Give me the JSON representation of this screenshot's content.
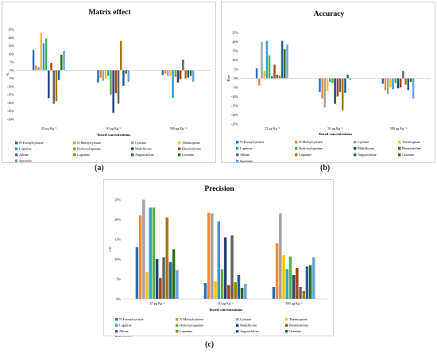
{
  "series_legend": [
    {
      "name": "N-Formylcytisine",
      "color": "#2e72b8"
    },
    {
      "name": "N-Methylcytisine",
      "color": "#ef8c3b"
    },
    {
      "name": "Cytisine",
      "color": "#a4a4a4"
    },
    {
      "name": "Thermopsine",
      "color": "#f6c11d"
    },
    {
      "name": "Lupinine",
      "color": "#2fa0d6"
    },
    {
      "name": "Hydroxylupanine",
      "color": "#56b347"
    },
    {
      "name": "Multiflorine",
      "color": "#264478"
    },
    {
      "name": "Rhombifoline",
      "color": "#a3460f"
    },
    {
      "name": "Albine",
      "color": "#636363"
    },
    {
      "name": "Lupanine",
      "color": "#a67c00"
    },
    {
      "name": "Angustifoline",
      "color": "#245e9f"
    },
    {
      "name": "Gramine",
      "color": "#2d6e24"
    },
    {
      "name": "Sparteine",
      "color": "#6fa3d8"
    }
  ],
  "chart_data": [
    {
      "type": "bar",
      "panel_label": "(a)",
      "title": "Matrix effect",
      "xlabel": "Tested concentrations",
      "ylabel": "%",
      "categories": [
        "25 μg Kg⁻¹",
        "50 μg Kg⁻¹",
        "500 μg Kg⁻¹"
      ],
      "ylim": [
        -30,
        25
      ],
      "yticks": [
        25,
        20,
        15,
        10,
        5,
        0,
        -5,
        -10,
        -15,
        -20,
        -25,
        -30
      ],
      "ytick_labels": [
        "25%",
        "20%",
        "15%",
        "10%",
        "5%",
        "0%",
        "-5%",
        "-10%",
        "-15%",
        "-20%",
        "-25%",
        "-30%"
      ],
      "grid": false,
      "legend": "bottom",
      "series": [
        {
          "name": "N-Formylcytisine",
          "values": [
            12.5,
            -7.5,
            -3
          ]
        },
        {
          "name": "N-Methylcytisine",
          "values": [
            3,
            -4.5,
            -2
          ]
        },
        {
          "name": "Cytisine",
          "values": [
            2,
            -6.5,
            -3.5
          ]
        },
        {
          "name": "Thermopsine",
          "values": [
            23,
            -5,
            -3.5
          ]
        },
        {
          "name": "Lupinine",
          "values": [
            16.5,
            -3.5,
            -17
          ]
        },
        {
          "name": "Hydroxylupanine",
          "values": [
            19.5,
            -15,
            -4
          ]
        },
        {
          "name": "Multiflorine",
          "values": [
            -17,
            -26,
            -7.5
          ]
        },
        {
          "name": "Rhombifoline",
          "values": [
            4.5,
            -14,
            -5.5
          ]
        },
        {
          "name": "Albine",
          "values": [
            -20.5,
            -20.5,
            6.5
          ]
        },
        {
          "name": "Lupanine",
          "values": [
            -19,
            18,
            -5
          ]
        },
        {
          "name": "Angustifoline",
          "values": [
            -6,
            -9.5,
            -4.5
          ]
        },
        {
          "name": "Gramine",
          "values": [
            9.5,
            -2,
            -3.5
          ]
        },
        {
          "name": "Sparteine",
          "values": [
            12,
            -7,
            -7
          ]
        }
      ]
    },
    {
      "type": "bar",
      "panel_label": "(b)",
      "title": "Accuracy",
      "xlabel": "Tested concentrations",
      "ylabel": "Bias",
      "categories": [
        "25 μg Kg⁻¹",
        "50 μg Kg⁻¹",
        "500 μg Kg⁻¹"
      ],
      "ylim": [
        -25,
        25
      ],
      "yticks": [
        25,
        20,
        15,
        10,
        5,
        0,
        -5,
        -10,
        -15,
        -20,
        -25
      ],
      "ytick_labels": [
        "25%",
        "20%",
        "15%",
        "10%",
        "5%",
        "0%",
        "-5%",
        "-10%",
        "-15%",
        "-20%",
        "-25%"
      ],
      "grid": false,
      "legend": "bottom",
      "series": [
        {
          "name": "N-Formylcytisine",
          "values": [
            5.5,
            -7.5,
            -3
          ]
        },
        {
          "name": "N-Methylcytisine",
          "values": [
            -4,
            -11,
            -6.5
          ]
        },
        {
          "name": "Cytisine",
          "values": [
            20,
            -16,
            -8.5
          ]
        },
        {
          "name": "Thermopsine",
          "values": [
            4,
            -7,
            -5
          ]
        },
        {
          "name": "Lupinine",
          "values": [
            20.5,
            -2,
            -6
          ]
        },
        {
          "name": "Hydroxylupanine",
          "values": [
            12.5,
            -2.5,
            -2.5
          ]
        },
        {
          "name": "Multiflorine",
          "values": [
            1,
            -14,
            -5.5
          ]
        },
        {
          "name": "Rhombifoline",
          "values": [
            7.5,
            -10,
            -5
          ]
        },
        {
          "name": "Albine",
          "values": [
            2,
            -7.5,
            4
          ]
        },
        {
          "name": "Lupanine",
          "values": [
            1.5,
            -17.5,
            -3.5
          ]
        },
        {
          "name": "Angustifoline",
          "values": [
            20.5,
            -8,
            -6.5
          ]
        },
        {
          "name": "Gramine",
          "values": [
            16,
            2,
            -2
          ]
        },
        {
          "name": "Sparteine",
          "values": [
            18.5,
            -1,
            -11
          ]
        }
      ]
    },
    {
      "type": "bar",
      "panel_label": "(c)",
      "title": "Precision",
      "xlabel": "Tested concentrations",
      "ylabel": "CV",
      "categories": [
        "25 μg Kg⁻¹",
        "50 μg Kg⁻¹",
        "500 μg Kg⁻¹"
      ],
      "ylim": [
        0,
        25
      ],
      "yticks": [
        25,
        20,
        15,
        10,
        5,
        0
      ],
      "ytick_labels": [
        "25%",
        "20%",
        "15%",
        "10%",
        "5%",
        "0%"
      ],
      "grid": false,
      "legend": "bottom",
      "series": [
        {
          "name": "N-Formylcytisine",
          "values": [
            13,
            4,
            3
          ]
        },
        {
          "name": "N-Methylcytisine",
          "values": [
            21,
            21.7,
            14
          ]
        },
        {
          "name": "Cytisine",
          "values": [
            25,
            21.5,
            21.5
          ]
        },
        {
          "name": "Thermopsine",
          "values": [
            6.8,
            4.5,
            11
          ]
        },
        {
          "name": "Lupinine",
          "values": [
            23,
            19.5,
            7.5
          ]
        },
        {
          "name": "Hydroxylupanine",
          "values": [
            23,
            7.5,
            10.7
          ]
        },
        {
          "name": "Multiflorine",
          "values": [
            10,
            15.5,
            6
          ]
        },
        {
          "name": "Rhombifoline",
          "values": [
            5.3,
            3.5,
            7.8
          ]
        },
        {
          "name": "Albine",
          "values": [
            10.5,
            16,
            3
          ]
        },
        {
          "name": "Lupanine",
          "values": [
            20.5,
            4.2,
            2
          ]
        },
        {
          "name": "Angustifoline",
          "values": [
            9.3,
            6,
            8.2
          ]
        },
        {
          "name": "Gramine",
          "values": [
            12.5,
            2.8,
            8.5
          ]
        },
        {
          "name": "Sparteine",
          "values": [
            7.3,
            3.8,
            10.5
          ]
        }
      ]
    }
  ]
}
